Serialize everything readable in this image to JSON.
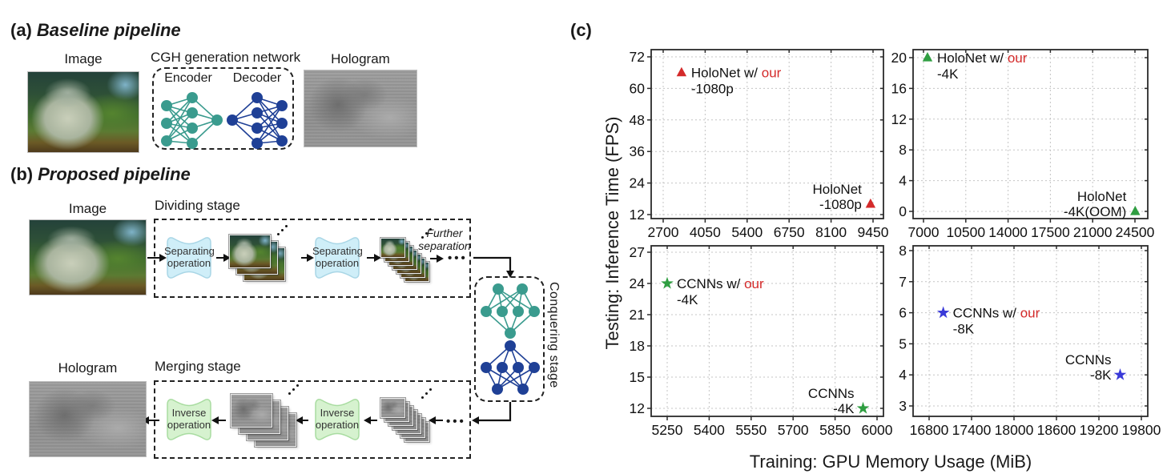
{
  "panel_a": {
    "prefix": "(a)",
    "title": "Baseline pipeline",
    "image_label": "Image",
    "network_label": "CGH generation network",
    "encoder_label": "Encoder",
    "decoder_label": "Decoder",
    "hologram_label": "Hologram"
  },
  "panel_b": {
    "prefix": "(b)",
    "title": "Proposed pipeline",
    "image_label": "Image",
    "dividing_label": "Dividing stage",
    "separating_op": {
      "line1": "Separating",
      "line2": "operation"
    },
    "further": {
      "line1": "Further",
      "line2": "separation"
    },
    "dots": "•••",
    "conquering_label": "Conquering stage",
    "merging_label": "Merging stage",
    "inverse_op": {
      "line1": "Inverse",
      "line2": "operation"
    },
    "hologram_label": "Hologram"
  },
  "panel_c": {
    "label": "(c)",
    "ylabel": "Testing: Inference Time (FPS)",
    "xlabel": "Training: GPU Memory Usage (MiB)"
  },
  "colors": {
    "accent_red": "#d42a2a",
    "green_marker": "#2f9e41",
    "blue_marker": "#3a3ad8",
    "teal_node": "#3a9b8e",
    "blue_node": "#1f4096",
    "separating_fill": "#cfeef8",
    "separating_stroke": "#a9d6e6",
    "inverse_fill": "#d6f2cf",
    "inverse_stroke": "#a8dca0"
  },
  "chart_data": [
    {
      "type": "scatter",
      "position": "top-left",
      "marker": "triangle",
      "marker_color": "#d42a2a",
      "grid": true,
      "xticks": [
        2700,
        4050,
        5400,
        6750,
        8100,
        9450
      ],
      "yticks": [
        12,
        24,
        36,
        48,
        60,
        72
      ],
      "xlim": [
        2320,
        9550
      ],
      "ylim": [
        10,
        76
      ],
      "points": [
        {
          "x": 3290,
          "y": 66,
          "line1": "HoloNet w/ ",
          "line1_red": "our",
          "line2": "-1080p",
          "label_side": "right"
        },
        {
          "x": 9370,
          "y": 16,
          "line1": "HoloNet",
          "line1_red": "",
          "line2": "-1080p",
          "label_side": "left"
        }
      ]
    },
    {
      "type": "scatter",
      "position": "top-right",
      "marker": "triangle",
      "marker_color": "#2f9e41",
      "grid": true,
      "xticks": [
        7000,
        10500,
        14000,
        17500,
        21000,
        24500
      ],
      "yticks": [
        0,
        4,
        8,
        12,
        16,
        20
      ],
      "xlim": [
        6100,
        25000
      ],
      "ylim": [
        -0.7,
        21.1
      ],
      "points": [
        {
          "x": 7330,
          "y": 20,
          "line1": "HoloNet w/ ",
          "line1_red": "our",
          "line2": "-4K",
          "label_side": "right"
        },
        {
          "x": 24520,
          "y": 0,
          "line1": "HoloNet",
          "line1_red": "",
          "line2": "-4K(OOM)",
          "label_side": "left"
        }
      ]
    },
    {
      "type": "scatter",
      "position": "bottom-left",
      "marker": "star",
      "marker_color": "#2f9e41",
      "grid": true,
      "xticks": [
        5250,
        5400,
        5550,
        5700,
        5850,
        6000
      ],
      "yticks": [
        12,
        15,
        18,
        21,
        24,
        27
      ],
      "xlim": [
        5190,
        6030
      ],
      "ylim": [
        11,
        27.6
      ],
      "points": [
        {
          "x": 5250,
          "y": 24,
          "line1": "CCNNs w/ ",
          "line1_red": "our",
          "line2": "-4K",
          "label_side": "right"
        },
        {
          "x": 5950,
          "y": 12,
          "line1": "CCNNs",
          "line1_red": "",
          "line2": "-4K",
          "label_side": "left"
        }
      ]
    },
    {
      "type": "scatter",
      "position": "bottom-right",
      "marker": "star",
      "marker_color": "#3a3ad8",
      "grid": true,
      "xticks": [
        16800,
        17400,
        18000,
        18600,
        19200,
        19800
      ],
      "yticks": [
        3,
        4,
        5,
        6,
        7,
        8
      ],
      "xlim": [
        16680,
        19890
      ],
      "ylim": [
        2.6,
        8.2
      ],
      "points": [
        {
          "x": 17000,
          "y": 6,
          "line1": "CCNNs w/ ",
          "line1_red": "our",
          "line2": "-8K",
          "label_side": "right"
        },
        {
          "x": 19500,
          "y": 4,
          "line1": "CCNNs",
          "line1_red": "",
          "line2": "-8K",
          "label_side": "left"
        }
      ]
    }
  ]
}
